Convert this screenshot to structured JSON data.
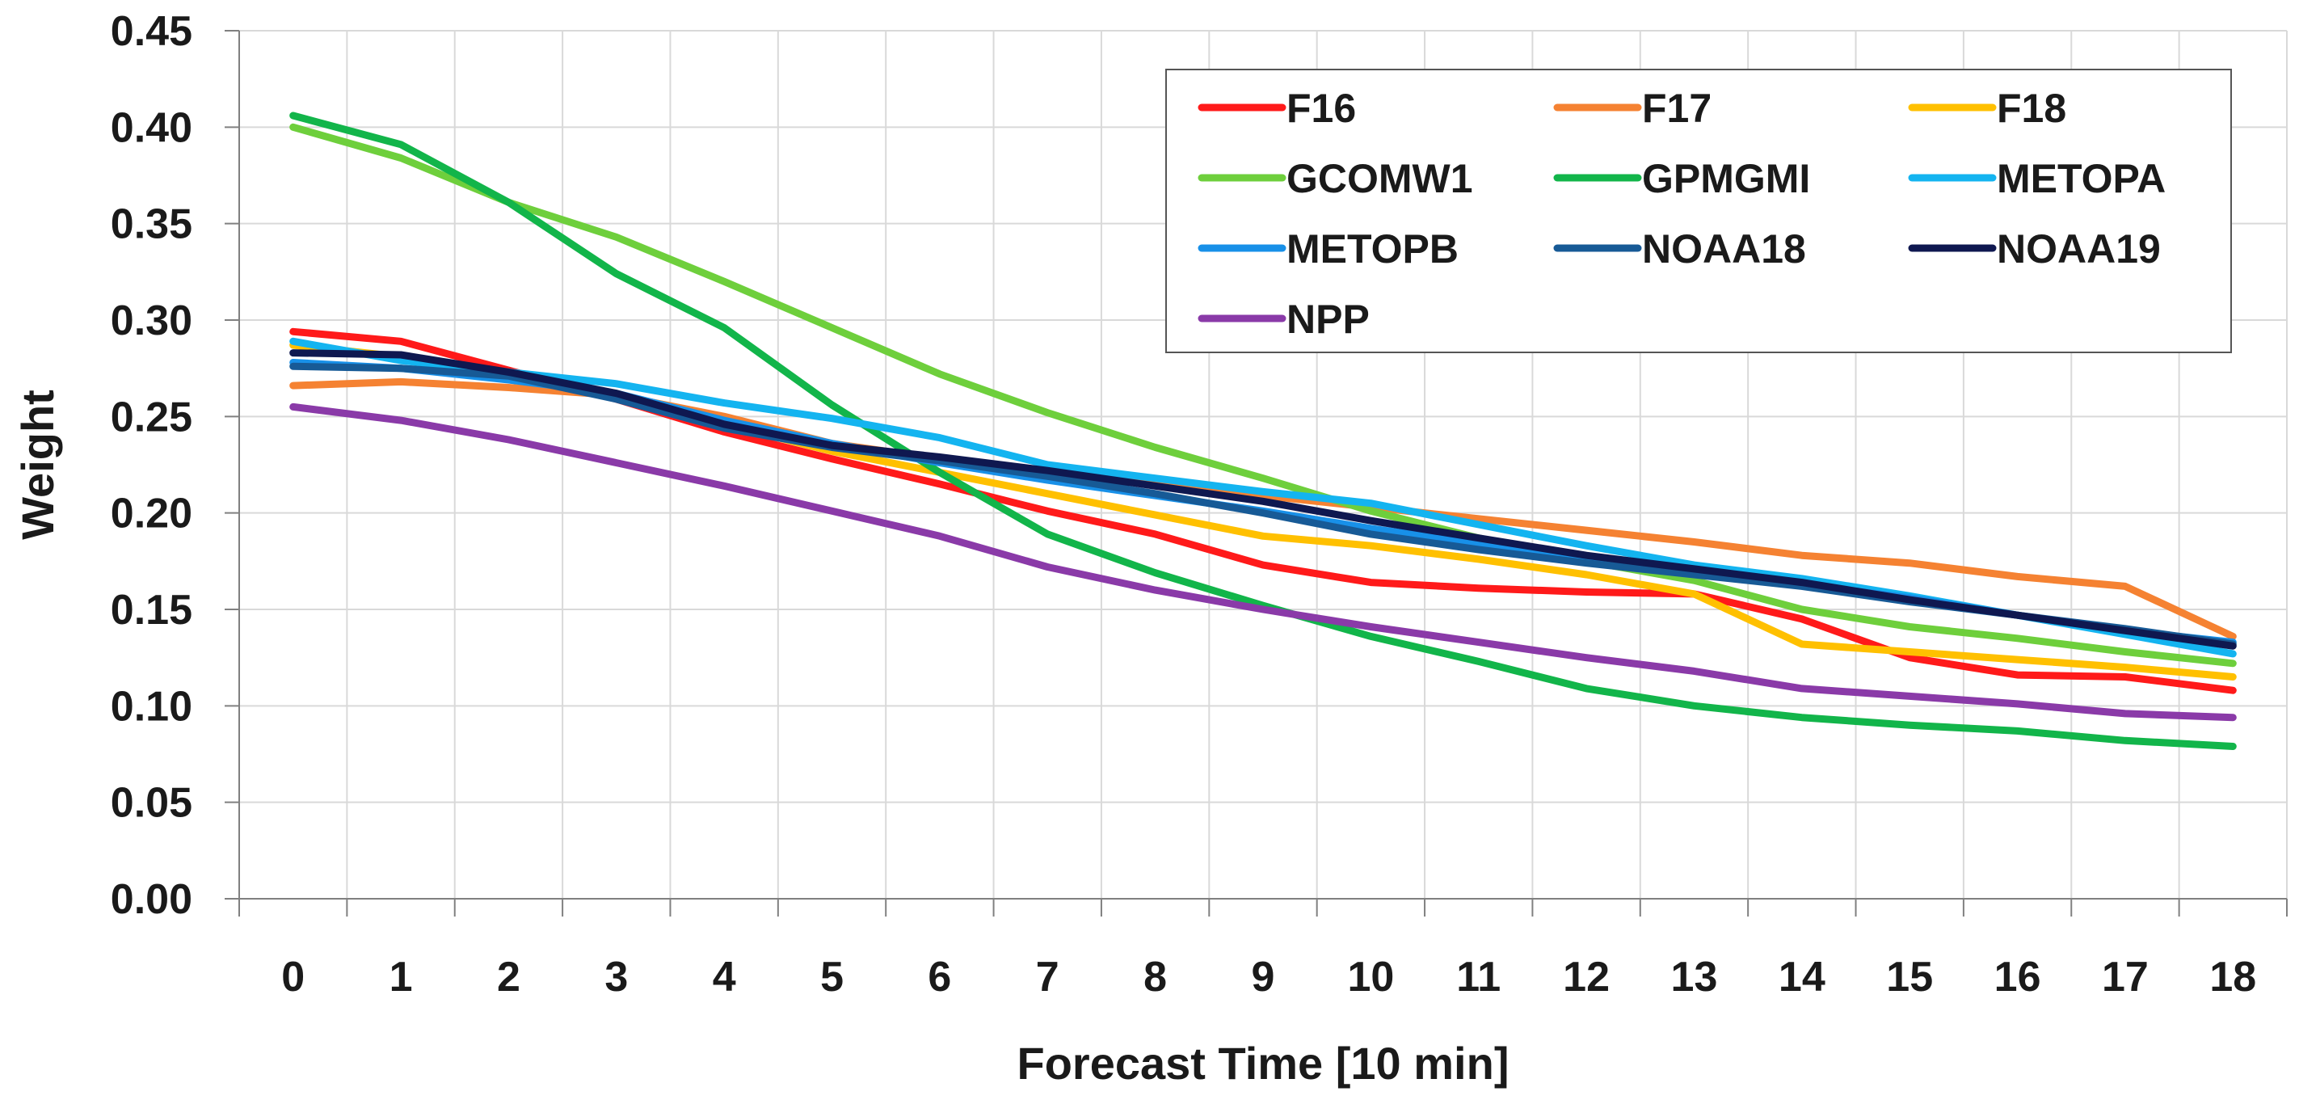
{
  "chart_data": {
    "type": "line",
    "title": "",
    "xlabel": "Forecast Time [10 min]",
    "ylabel": "Weight",
    "x": [
      0,
      1,
      2,
      3,
      4,
      5,
      6,
      7,
      8,
      9,
      10,
      11,
      12,
      13,
      14,
      15,
      16,
      17,
      18
    ],
    "xticks": [
      "0",
      "1",
      "2",
      "3",
      "4",
      "5",
      "6",
      "7",
      "8",
      "9",
      "10",
      "11",
      "12",
      "13",
      "14",
      "15",
      "16",
      "17",
      "18"
    ],
    "yticks": [
      "0.00",
      "0.05",
      "0.10",
      "0.15",
      "0.20",
      "0.25",
      "0.30",
      "0.35",
      "0.40",
      "0.45"
    ],
    "ylim": [
      0,
      0.45
    ],
    "grid": true,
    "legend_position": "top-right",
    "series": [
      {
        "name": "F16",
        "color": "#ff1a1a",
        "values": [
          0.294,
          0.289,
          0.274,
          0.259,
          0.242,
          0.228,
          0.215,
          0.201,
          0.189,
          0.173,
          0.164,
          0.161,
          0.159,
          0.158,
          0.145,
          0.125,
          0.116,
          0.115,
          0.108
        ]
      },
      {
        "name": "F17",
        "color": "#f58232",
        "values": [
          0.266,
          0.268,
          0.265,
          0.261,
          0.25,
          0.236,
          0.228,
          0.222,
          0.215,
          0.209,
          0.203,
          0.197,
          0.191,
          0.185,
          0.178,
          0.174,
          0.167,
          0.162,
          0.136
        ]
      },
      {
        "name": "F18",
        "color": "#ffc000",
        "values": [
          0.287,
          0.281,
          0.272,
          0.262,
          0.246,
          0.232,
          0.221,
          0.21,
          0.199,
          0.188,
          0.183,
          0.176,
          0.168,
          0.158,
          0.132,
          0.128,
          0.124,
          0.12,
          0.115
        ]
      },
      {
        "name": "GCOMW1",
        "color": "#6ecf3c",
        "values": [
          0.4,
          0.384,
          0.361,
          0.343,
          0.32,
          0.296,
          0.272,
          0.252,
          0.234,
          0.218,
          0.201,
          0.187,
          0.175,
          0.165,
          0.15,
          0.141,
          0.135,
          0.128,
          0.122
        ]
      },
      {
        "name": "GPMGMI",
        "color": "#12b54a",
        "values": [
          0.406,
          0.391,
          0.361,
          0.324,
          0.296,
          0.256,
          0.221,
          0.189,
          0.169,
          0.152,
          0.136,
          0.123,
          0.109,
          0.1,
          0.094,
          0.09,
          0.087,
          0.082,
          0.079
        ]
      },
      {
        "name": "METOPA",
        "color": "#14b4f0",
        "values": [
          0.289,
          0.279,
          0.273,
          0.267,
          0.257,
          0.249,
          0.239,
          0.225,
          0.218,
          0.211,
          0.205,
          0.194,
          0.183,
          0.173,
          0.166,
          0.157,
          0.147,
          0.137,
          0.127
        ]
      },
      {
        "name": "METOPB",
        "color": "#1890e8",
        "values": [
          0.278,
          0.275,
          0.269,
          0.262,
          0.248,
          0.236,
          0.226,
          0.217,
          0.209,
          0.201,
          0.192,
          0.184,
          0.176,
          0.169,
          0.163,
          0.156,
          0.147,
          0.139,
          0.133
        ]
      },
      {
        "name": "NOAA18",
        "color": "#175a96",
        "values": [
          0.276,
          0.275,
          0.271,
          0.259,
          0.244,
          0.234,
          0.227,
          0.219,
          0.21,
          0.2,
          0.189,
          0.181,
          0.174,
          0.168,
          0.162,
          0.154,
          0.147,
          0.14,
          0.132
        ]
      },
      {
        "name": "NOAA19",
        "color": "#0f1850",
        "values": [
          0.283,
          0.282,
          0.273,
          0.262,
          0.246,
          0.235,
          0.229,
          0.222,
          0.214,
          0.206,
          0.196,
          0.187,
          0.178,
          0.171,
          0.164,
          0.155,
          0.147,
          0.139,
          0.131
        ]
      },
      {
        "name": "NPP",
        "color": "#8a3aa8",
        "values": [
          0.255,
          0.248,
          0.238,
          0.226,
          0.214,
          0.201,
          0.188,
          0.172,
          0.16,
          0.15,
          0.141,
          0.133,
          0.125,
          0.118,
          0.109,
          0.105,
          0.101,
          0.096,
          0.094
        ]
      }
    ]
  }
}
